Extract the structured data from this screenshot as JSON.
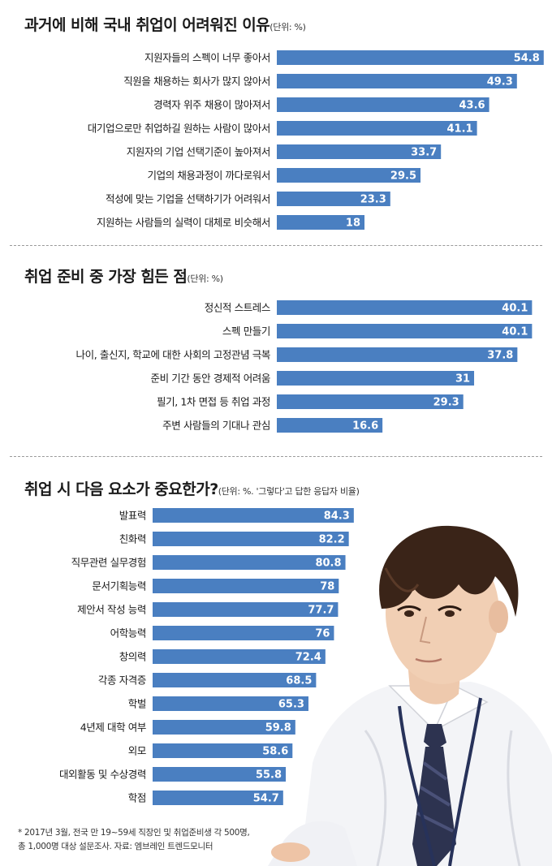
{
  "colors": {
    "bar": "#4a7fc1",
    "value_on_bar": "#ffffff",
    "value_outside": "#2a2a2a"
  },
  "charts": {
    "reasons": {
      "title": "과거에 비해 국내 취업이 어려워진 이유",
      "unit": "(단위: %)"
    },
    "difficulties": {
      "title": "취업 준비 중 가장 힘든 점",
      "unit": "(단위: %)"
    },
    "factors": {
      "title": "취업 시 다음 요소가 중요한가?",
      "unit": "(단위: %. '그렇다'고 답한 응답자 비율)"
    }
  },
  "chart_data": [
    {
      "type": "bar",
      "orientation": "horizontal",
      "title": "과거에 비해 국내 취업이 어려워진 이유",
      "unit": "%",
      "categories": [
        "지원자들의 스펙이 너무 좋아서",
        "직원을 채용하는 회사가 많지 않아서",
        "경력자 위주 채용이 많아져서",
        "대기업으로만 취업하길 원하는 사람이 많아서",
        "지원자의 기업 선택기준이 높아져서",
        "기업의 채용과정이 까다로워서",
        "적성에 맞는 기업을 선택하기가 어려워서",
        "지원하는 사람들의 실력이 대체로 비슷해서"
      ],
      "values": [
        54.8,
        49.3,
        43.6,
        41.1,
        33.7,
        29.5,
        23.3,
        18
      ],
      "value_labels": [
        "54.8",
        "49.3",
        "43.6",
        "41.1",
        "33.7",
        "29.5",
        "23.3",
        "18"
      ]
    },
    {
      "type": "bar",
      "orientation": "horizontal",
      "title": "취업 준비 중 가장 힘든 점",
      "unit": "%",
      "categories": [
        "정신적 스트레스",
        "스펙 만들기",
        "나이, 출신지, 학교에 대한 사회의 고정관념 극복",
        "준비 기간 동안 경제적 어려움",
        "필기, 1차 면접 등 취업 과정",
        "주변 사람들의 기대나 관심"
      ],
      "values": [
        40.1,
        40.1,
        37.8,
        31,
        29.3,
        16.6
      ],
      "value_labels": [
        "40.1",
        "40.1",
        "37.8",
        "31",
        "29.3",
        "16.6"
      ]
    },
    {
      "type": "bar",
      "orientation": "horizontal",
      "title": "취업 시 다음 요소가 중요한가?",
      "unit": "%",
      "categories": [
        "발표력",
        "친화력",
        "직무관련 실무경험",
        "문서기획능력",
        "제안서 작성 능력",
        "어학능력",
        "창의력",
        "각종 자격증",
        "학벌",
        "4년제 대학 여부",
        "외모",
        "대외활동 및 수상경력",
        "학점"
      ],
      "values": [
        84.3,
        82.2,
        80.8,
        78,
        77.7,
        76,
        72.4,
        68.5,
        65.3,
        59.8,
        58.6,
        55.8,
        54.7
      ],
      "value_labels": [
        "84.3",
        "82.2",
        "80.8",
        "78",
        "77.7",
        "76",
        "72.4",
        "68.5",
        "65.3",
        "59.8",
        "58.6",
        "55.8",
        "54.7"
      ]
    }
  ],
  "footnote": "* 2017년 3월, 전국 만 19~59세 직장인 및 취업준비생 각 500명,\n총 1,000명 대상 설문조사. 자료: 엠브레인 트렌드모니터",
  "illustration": {
    "subject": "young-man-portrait"
  }
}
